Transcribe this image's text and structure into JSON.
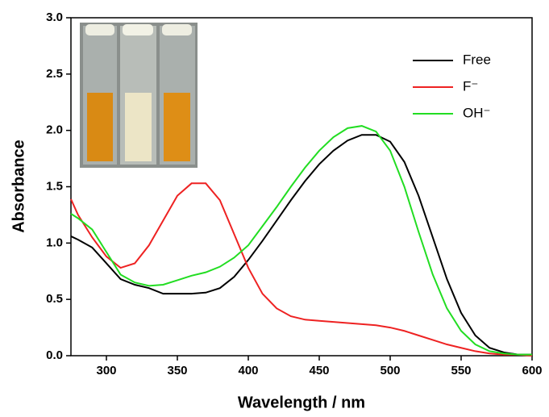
{
  "chart_data": {
    "type": "line",
    "x_label": "Wavelength / nm",
    "y_label": "Absorbance",
    "x": [
      275,
      280,
      290,
      300,
      310,
      320,
      330,
      340,
      350,
      360,
      370,
      380,
      390,
      400,
      410,
      420,
      430,
      440,
      450,
      460,
      470,
      480,
      490,
      500,
      510,
      520,
      530,
      540,
      550,
      560,
      570,
      580,
      590,
      600
    ],
    "series": [
      {
        "name": "Free",
        "color": "#000000",
        "values": [
          1.06,
          1.03,
          0.96,
          0.82,
          0.68,
          0.63,
          0.6,
          0.55,
          0.55,
          0.55,
          0.56,
          0.6,
          0.7,
          0.85,
          1.02,
          1.2,
          1.38,
          1.55,
          1.7,
          1.82,
          1.91,
          1.96,
          1.96,
          1.9,
          1.72,
          1.42,
          1.05,
          0.68,
          0.38,
          0.18,
          0.07,
          0.03,
          0.01,
          0.01
        ]
      },
      {
        "name": "F⁻",
        "color": "#ee2222",
        "values": [
          1.39,
          1.25,
          1.05,
          0.88,
          0.78,
          0.82,
          0.98,
          1.2,
          1.42,
          1.53,
          1.53,
          1.38,
          1.08,
          0.78,
          0.55,
          0.42,
          0.35,
          0.32,
          0.31,
          0.3,
          0.29,
          0.28,
          0.27,
          0.25,
          0.22,
          0.18,
          0.14,
          0.1,
          0.07,
          0.04,
          0.02,
          0.01,
          0.01,
          0.0
        ]
      },
      {
        "name": "OH⁻",
        "color": "#22dd22",
        "values": [
          1.26,
          1.22,
          1.12,
          0.92,
          0.72,
          0.65,
          0.62,
          0.63,
          0.67,
          0.71,
          0.74,
          0.79,
          0.87,
          0.98,
          1.15,
          1.32,
          1.5,
          1.67,
          1.82,
          1.94,
          2.02,
          2.04,
          1.99,
          1.82,
          1.5,
          1.1,
          0.72,
          0.42,
          0.22,
          0.1,
          0.04,
          0.02,
          0.01,
          0.01
        ]
      }
    ],
    "xlim": [
      275,
      600
    ],
    "xticks": [
      300,
      350,
      400,
      450,
      500,
      550,
      600
    ],
    "ylim": [
      0,
      3
    ],
    "yticks": [
      {
        "value": 0,
        "label": "0.0"
      },
      0.5,
      {
        "value": 1,
        "label": "1.0"
      },
      1.5,
      {
        "value": 2,
        "label": "2.0"
      },
      2.5,
      {
        "value": 3,
        "label": "3.0"
      }
    ],
    "legend": "top-right"
  }
}
